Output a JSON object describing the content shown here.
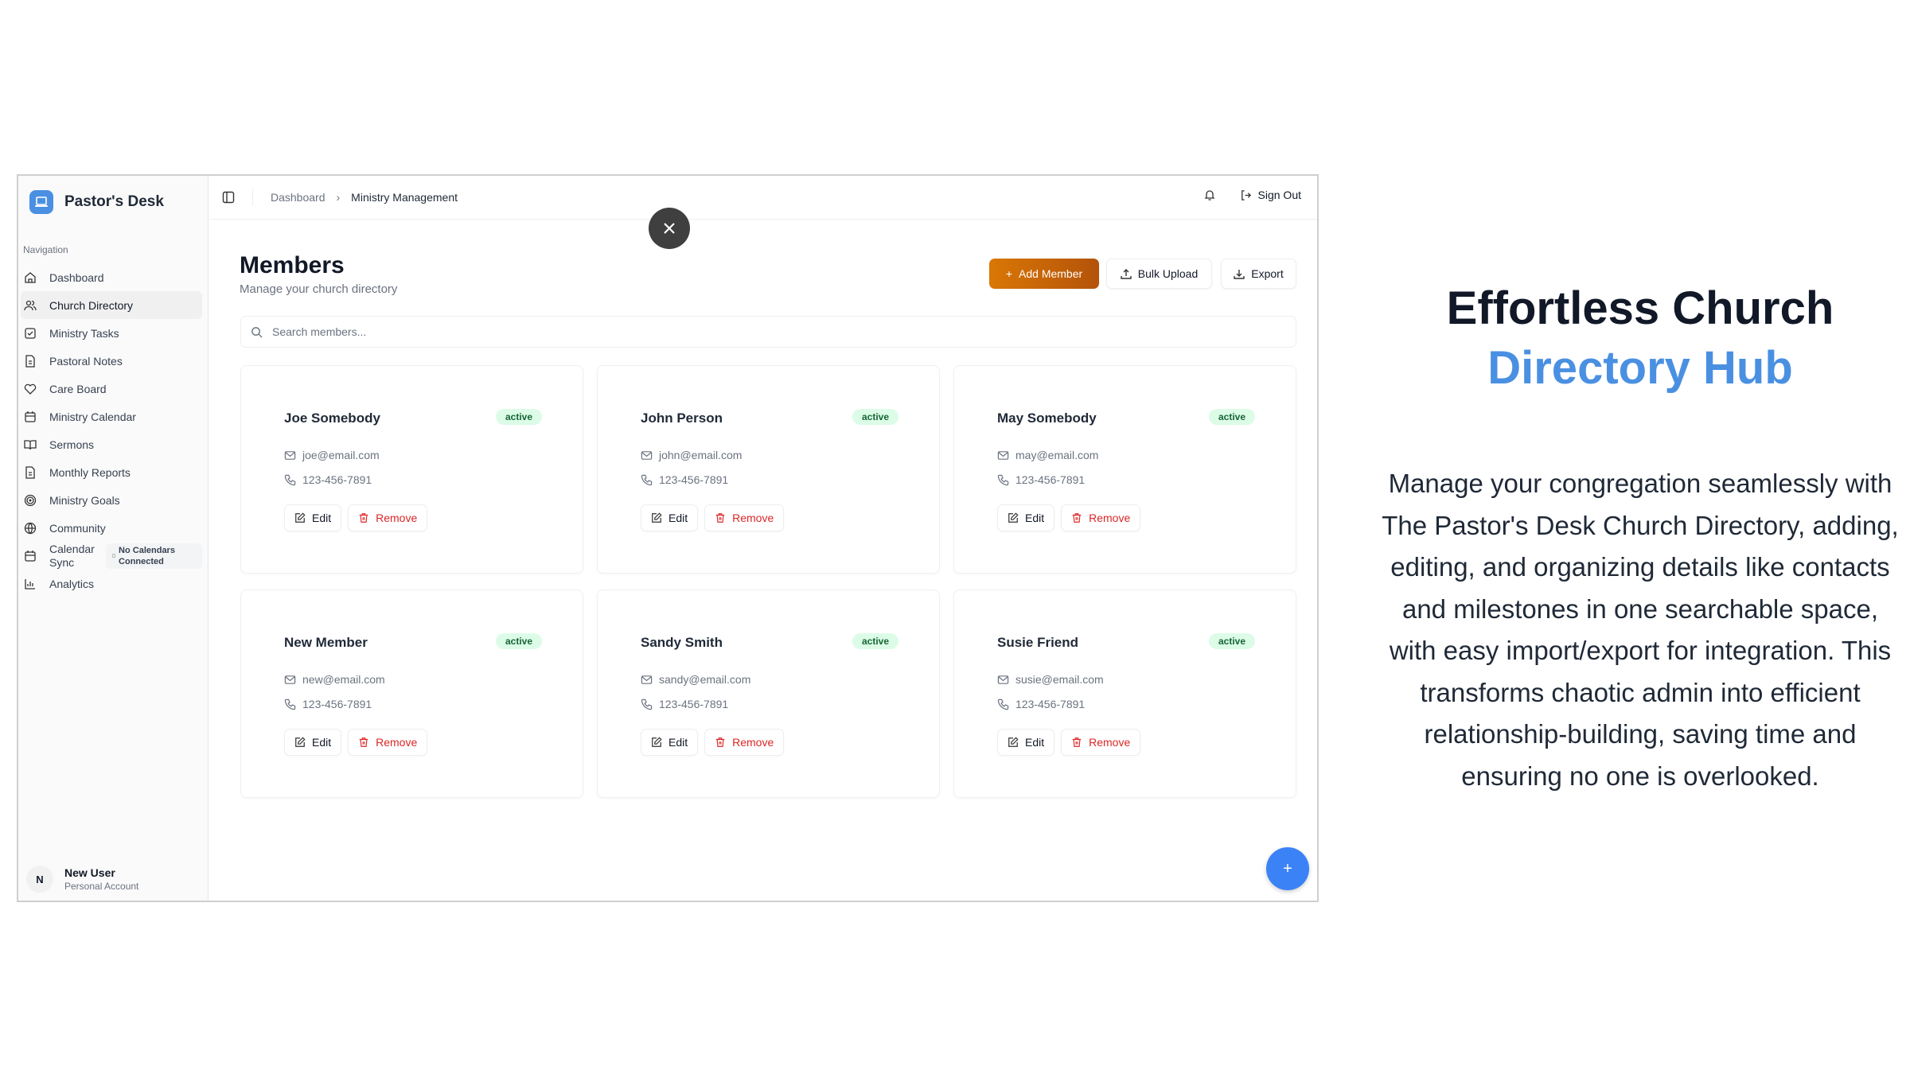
{
  "sidebar": {
    "brand": "Pastor's Desk",
    "nav_label": "Navigation",
    "items": [
      {
        "label": "Dashboard",
        "icon": "home-icon"
      },
      {
        "label": "Church Directory",
        "icon": "users-icon",
        "active": true
      },
      {
        "label": "Ministry Tasks",
        "icon": "checkbox-icon"
      },
      {
        "label": "Pastoral Notes",
        "icon": "file-icon"
      },
      {
        "label": "Care Board",
        "icon": "heart-icon"
      },
      {
        "label": "Ministry Calendar",
        "icon": "calendar-icon"
      },
      {
        "label": "Sermons",
        "icon": "book-icon"
      },
      {
        "label": "Monthly Reports",
        "icon": "file-icon"
      },
      {
        "label": "Ministry Goals",
        "icon": "target-icon"
      },
      {
        "label": "Community",
        "icon": "globe-icon"
      },
      {
        "label": "Calendar Sync",
        "icon": "calendar-icon",
        "badge": "No Calendars Connected"
      },
      {
        "label": "Analytics",
        "icon": "bar-chart-icon"
      }
    ],
    "user": {
      "initial": "N",
      "name": "New User",
      "account": "Personal Account"
    }
  },
  "header": {
    "breadcrumb": [
      "Dashboard",
      "Ministry Management"
    ],
    "sign_out": "Sign Out"
  },
  "main": {
    "title": "Members",
    "subtitle": "Manage your church directory",
    "add_member": "Add Member",
    "bulk_upload": "Bulk Upload",
    "export": "Export",
    "search_placeholder": "Search members...",
    "edit_label": "Edit",
    "remove_label": "Remove",
    "members": [
      {
        "name": "Joe Somebody",
        "status": "active",
        "email": "joe@email.com",
        "phone": "123-456-7891"
      },
      {
        "name": "John Person",
        "status": "active",
        "email": "john@email.com",
        "phone": "123-456-7891"
      },
      {
        "name": "May Somebody",
        "status": "active",
        "email": "may@email.com",
        "phone": "123-456-7891"
      },
      {
        "name": "New Member",
        "status": "active",
        "email": "new@email.com",
        "phone": "123-456-7891"
      },
      {
        "name": "Sandy Smith",
        "status": "active",
        "email": "sandy@email.com",
        "phone": "123-456-7891"
      },
      {
        "name": "Susie Friend",
        "status": "active",
        "email": "susie@email.com",
        "phone": "123-456-7891"
      }
    ],
    "fab": "+"
  },
  "promo": {
    "title_line1": "Effortless Church",
    "title_line2": "Directory Hub",
    "text": "Manage your congregation seamlessly with The Pastor's Desk Church Directory, adding, editing, and organizing details like contacts and milestones in one searchable space, with easy import/export for integration. This transforms chaotic admin into efficient relationship-building, saving time and ensuring no one is overlooked."
  },
  "colors": {
    "accent": "#4a90e2",
    "add_button": "#d97706",
    "remove": "#dc2626",
    "active_badge": "#dcfce7",
    "fab": "#3b82f6"
  }
}
